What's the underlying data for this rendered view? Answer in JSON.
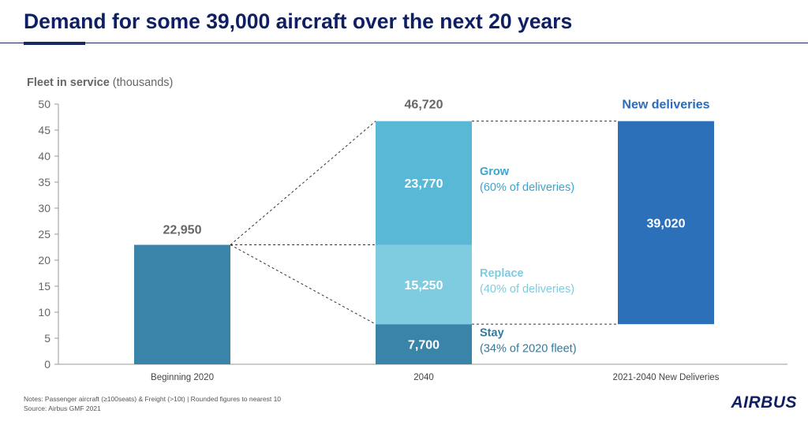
{
  "header": {
    "title": "Demand for some 39,000 aircraft over the next 20 years"
  },
  "chart_data": {
    "type": "bar",
    "ylabel_bold": "Fleet in service",
    "ylabel_rest": " (thousands)",
    "ylim": [
      0,
      50
    ],
    "yticks": [
      0,
      5,
      10,
      15,
      20,
      25,
      30,
      35,
      40,
      45,
      50
    ],
    "grid": false,
    "categories": [
      "Beginning 2020",
      "2040",
      "2021-2040 New Deliveries"
    ],
    "bars": [
      {
        "category": "Beginning 2020",
        "segments": [
          {
            "name": "",
            "value": 22.95,
            "label": "22,950",
            "color": "#3a84a9",
            "label_position": "above"
          }
        ]
      },
      {
        "category": "2040",
        "total_label": "46,720",
        "segments": [
          {
            "name": "Stay",
            "note": "(34% of 2020 fleet)",
            "value": 7.7,
            "label": "7,700",
            "color": "#3a84a9",
            "name_color": "#2f7aa0"
          },
          {
            "name": "Replace",
            "note": "(40% of deliveries)",
            "value": 15.25,
            "label": "15,250",
            "color": "#7fcbe0",
            "name_color": "#7fcbe0"
          },
          {
            "name": "Grow",
            "note": "(60% of deliveries)",
            "value": 23.77,
            "label": "23,770",
            "color": "#5ab8d7",
            "name_color": "#3aa6cf"
          }
        ]
      },
      {
        "category": "2021-2040 New Deliveries",
        "header_label": "New deliveries",
        "base": 7.7,
        "segments": [
          {
            "name": "",
            "value": 39.02,
            "label": "39,020",
            "color": "#2b70b9"
          }
        ]
      }
    ],
    "colors": {
      "header_blue": "#2b6cb6",
      "value_grey": "#666666",
      "axis": "#999999"
    }
  },
  "footer": {
    "notes": "Notes: Passenger aircraft (≥100seats) & Freight (>10t) | Rounded figures to nearest 10",
    "source": "Source: Airbus GMF 2021",
    "logo": "AIRBUS"
  }
}
